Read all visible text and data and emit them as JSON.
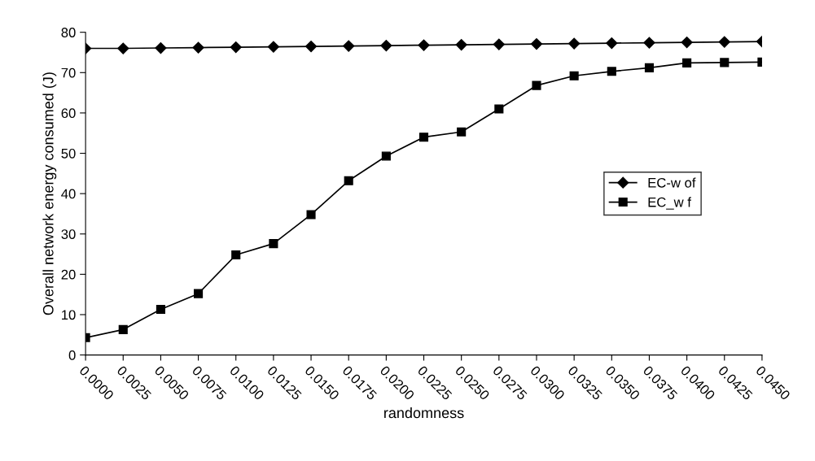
{
  "chart_data": {
    "type": "line",
    "xlabel": "randomness",
    "ylabel": "Overall network energy consumed (J)",
    "categories": [
      "0.0000",
      "0.0025",
      "0.0050",
      "0.0075",
      "0.0100",
      "0.0125",
      "0.0150",
      "0.0175",
      "0.0200",
      "0.0225",
      "0.0250",
      "0.0275",
      "0.0300",
      "0.0325",
      "0.0350",
      "0.0375",
      "0.0400",
      "0.0425",
      "0.0450"
    ],
    "series": [
      {
        "name": "EC-w of",
        "color": "#000000",
        "marker": "diamond",
        "values": [
          76.0,
          76.0,
          76.1,
          76.2,
          76.3,
          76.4,
          76.5,
          76.6,
          76.7,
          76.8,
          76.9,
          77.0,
          77.1,
          77.2,
          77.3,
          77.4,
          77.5,
          77.6,
          77.7
        ]
      },
      {
        "name": "EC_w f",
        "color": "#000000",
        "marker": "square",
        "values": [
          4.3,
          6.3,
          11.3,
          15.2,
          24.8,
          27.6,
          34.8,
          43.2,
          49.3,
          54.0,
          55.3,
          61.0,
          66.8,
          69.2,
          70.3,
          71.2,
          72.4,
          72.5,
          72.6
        ]
      }
    ],
    "ylim": [
      0,
      80
    ],
    "yticks": [
      0,
      10,
      20,
      30,
      40,
      50,
      60,
      70,
      80
    ],
    "grid": false,
    "legend": "right",
    "line_style": "solid"
  }
}
